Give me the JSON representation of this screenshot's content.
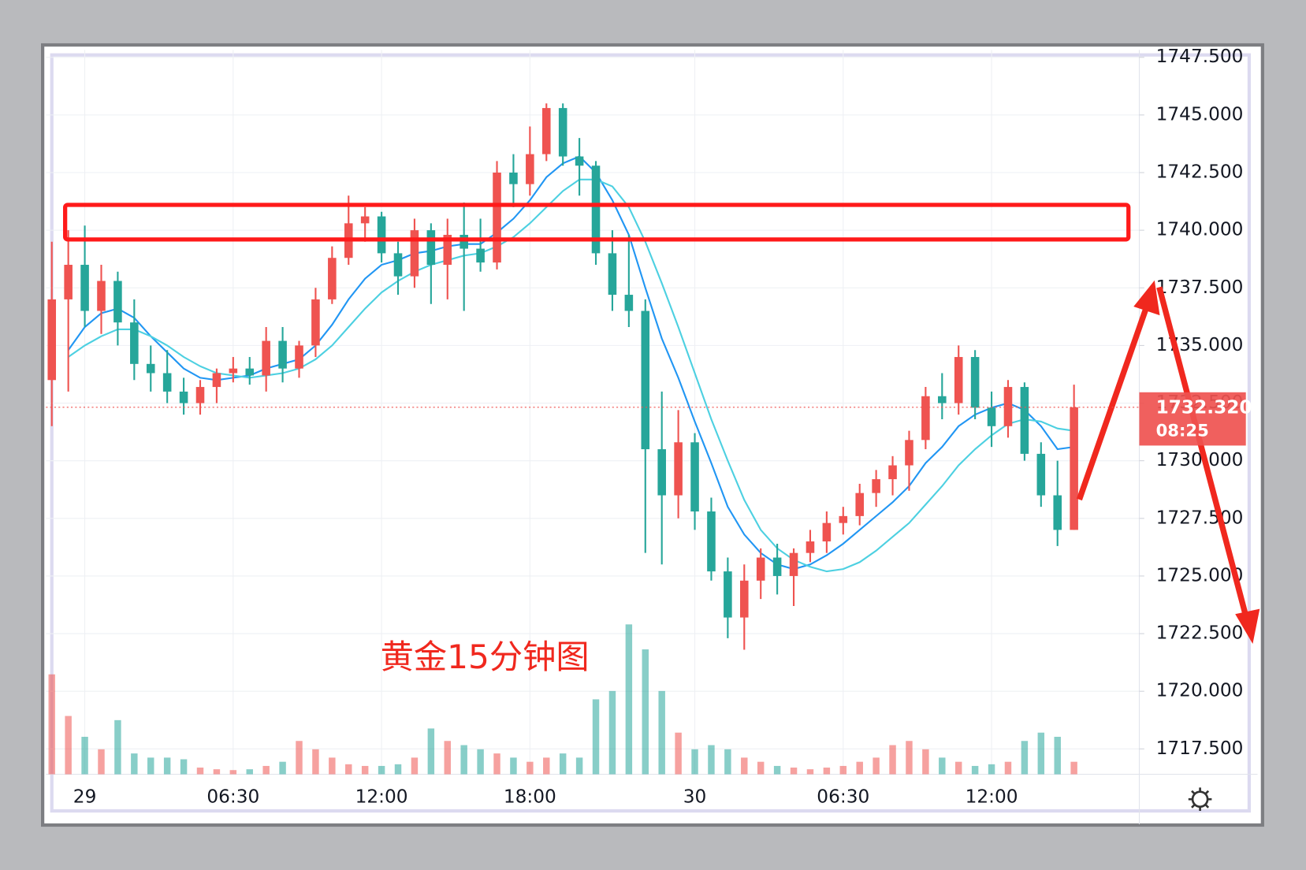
{
  "chart_data": {
    "type": "candlestick",
    "annotation": "黄金15分钟图",
    "last_price_label": "1732.320",
    "countdown": "08:25",
    "up_color": "#ef5350",
    "down_color": "#26a69a",
    "zone": [
      1739.6,
      1741.1
    ],
    "zone_color": "#ff1a1a",
    "categories": [
      null,
      null,
      "29",
      null,
      null,
      null,
      null,
      null,
      null,
      null,
      null,
      "06:30",
      null,
      null,
      null,
      null,
      null,
      null,
      null,
      null,
      "12:00",
      null,
      null,
      null,
      null,
      null,
      null,
      null,
      null,
      "18:00",
      null,
      null,
      null,
      null,
      null,
      null,
      null,
      null,
      null,
      "30",
      null,
      null,
      null,
      null,
      null,
      null,
      null,
      null,
      "06:30",
      null,
      null,
      null,
      null,
      null,
      null,
      null,
      null,
      "12:00",
      null,
      null,
      null,
      null,
      null
    ],
    "open": [
      1733.5,
      1737,
      1738.5,
      1736.5,
      1737.8,
      1736,
      1734.2,
      1733.8,
      1733,
      1732.5,
      1733.2,
      1733.8,
      1734,
      1733.7,
      1735.2,
      1734,
      1735,
      1737,
      1738.8,
      1740.3,
      1740.6,
      1739,
      1738,
      1740,
      1738.5,
      1739.8,
      1739.2,
      1738.6,
      1742.5,
      1742,
      1743.3,
      1745.3,
      1743.2,
      1742.8,
      1739,
      1737.2,
      1736.5,
      1730.5,
      1728.5,
      1730.8,
      1727.8,
      1725.2,
      1723.2,
      1724.8,
      1725.8,
      1725,
      1726,
      1726.5,
      1727.3,
      1727.6,
      1728.6,
      1729.2,
      1729.8,
      1730.9,
      1732.8,
      1732.5,
      1734.5,
      1732.3,
      1731.5,
      1733.2,
      1730.3,
      1728.5,
      1727
    ],
    "high": [
      1739.5,
      1740,
      1740.2,
      1738.5,
      1738.2,
      1737,
      1735,
      1734.8,
      1733.6,
      1733.5,
      1734,
      1734.5,
      1734.5,
      1735.8,
      1735.8,
      1735.2,
      1737.5,
      1739.3,
      1741.5,
      1741,
      1740.8,
      1739.5,
      1740.5,
      1740.3,
      1740.5,
      1741.2,
      1740.5,
      1743,
      1743.3,
      1744.5,
      1745.5,
      1745.5,
      1744,
      1743,
      1740,
      1739.8,
      1737,
      1733,
      1732.2,
      1731.2,
      1728.4,
      1725.8,
      1725.5,
      1726.2,
      1726.4,
      1726.2,
      1727,
      1727.8,
      1728,
      1729,
      1729.6,
      1730.2,
      1731.3,
      1733.2,
      1733.8,
      1735,
      1734.8,
      1733,
      1733.5,
      1733.4,
      1730.8,
      1730,
      1733.3
    ],
    "low": [
      1731.5,
      1733,
      1735.8,
      1735.5,
      1735,
      1733.5,
      1733,
      1732.5,
      1732,
      1732,
      1732.5,
      1733.4,
      1733.3,
      1733,
      1733.4,
      1733.6,
      1734.5,
      1736.8,
      1738.5,
      1739.5,
      1738.6,
      1737.2,
      1737.5,
      1736.8,
      1737,
      1736.5,
      1738.2,
      1738.3,
      1741,
      1741.5,
      1743,
      1742.8,
      1741.5,
      1738.5,
      1736.5,
      1735.8,
      1726,
      1725.5,
      1727.5,
      1727,
      1724.8,
      1722.3,
      1721.8,
      1724,
      1724.2,
      1723.7,
      1725.6,
      1726,
      1726.8,
      1727.2,
      1728,
      1728.5,
      1728.7,
      1730.5,
      1731.8,
      1732,
      1731.8,
      1730.6,
      1731,
      1730,
      1728,
      1726.3,
      1727
    ],
    "close": [
      1737,
      1738.5,
      1736.5,
      1737.8,
      1736,
      1734.2,
      1733.8,
      1733,
      1732.5,
      1733.2,
      1733.8,
      1734,
      1733.7,
      1735.2,
      1734,
      1735,
      1737,
      1738.8,
      1740.3,
      1740.6,
      1739,
      1738,
      1740,
      1738.5,
      1739.8,
      1739.2,
      1738.6,
      1742.5,
      1742,
      1743.3,
      1745.3,
      1743.2,
      1742.8,
      1739,
      1737.2,
      1736.5,
      1730.5,
      1728.5,
      1730.8,
      1727.8,
      1725.2,
      1723.2,
      1724.8,
      1725.8,
      1725,
      1726,
      1726.5,
      1727.3,
      1727.6,
      1728.6,
      1729.2,
      1729.8,
      1730.9,
      1732.8,
      1732.5,
      1734.5,
      1732.3,
      1731.5,
      1733.2,
      1730.3,
      1728.5,
      1727,
      1732.32
    ],
    "volume": [
      120,
      70,
      45,
      30,
      65,
      25,
      20,
      20,
      18,
      8,
      6,
      5,
      6,
      10,
      15,
      40,
      30,
      20,
      12,
      10,
      10,
      12,
      20,
      55,
      40,
      35,
      30,
      25,
      20,
      15,
      20,
      25,
      20,
      90,
      100,
      180,
      150,
      100,
      50,
      30,
      35,
      30,
      20,
      15,
      10,
      8,
      6,
      8,
      10,
      15,
      20,
      35,
      40,
      30,
      20,
      15,
      10,
      12,
      15,
      40,
      50,
      45,
      15
    ],
    "moving_averages": [
      {
        "color": "#2196f3",
        "values": [
          null,
          1734.8,
          1735.8,
          1736.4,
          1736.6,
          1736.2,
          1735.4,
          1734.7,
          1734,
          1733.6,
          1733.5,
          1733.6,
          1733.7,
          1734,
          1734.2,
          1734.4,
          1735,
          1735.9,
          1737,
          1737.9,
          1738.5,
          1738.7,
          1739,
          1739.1,
          1739.3,
          1739.4,
          1739.4,
          1739.9,
          1740.5,
          1741.3,
          1742.3,
          1742.9,
          1743.2,
          1742.5,
          1741.3,
          1739.8,
          1737.5,
          1735.3,
          1733.6,
          1731.7,
          1729.9,
          1728,
          1726.8,
          1726,
          1725.5,
          1725.3,
          1725.5,
          1725.9,
          1726.4,
          1727,
          1727.6,
          1728.2,
          1728.9,
          1729.9,
          1730.6,
          1731.5,
          1732,
          1732.3,
          1732.5,
          1732.2,
          1731.5,
          1730.5,
          1730.6
        ]
      },
      {
        "color": "#4dd0e1",
        "values": [
          null,
          1734.5,
          1735,
          1735.4,
          1735.7,
          1735.7,
          1735.4,
          1735,
          1734.5,
          1734.1,
          1733.8,
          1733.7,
          1733.6,
          1733.7,
          1733.8,
          1734,
          1734.4,
          1735,
          1735.8,
          1736.6,
          1737.3,
          1737.8,
          1738.2,
          1738.5,
          1738.7,
          1738.9,
          1739,
          1739.3,
          1739.7,
          1740.3,
          1741,
          1741.7,
          1742.2,
          1742.2,
          1741.9,
          1741,
          1739.5,
          1737.7,
          1735.8,
          1733.8,
          1731.8,
          1730,
          1728.3,
          1727,
          1726.2,
          1725.7,
          1725.4,
          1725.2,
          1725.3,
          1725.6,
          1726.1,
          1726.7,
          1727.3,
          1728.1,
          1728.9,
          1729.8,
          1730.5,
          1731.1,
          1731.6,
          1731.8,
          1731.7,
          1731.4,
          1731.3
        ]
      }
    ],
    "ylim": [
      1716.4,
      1747.82
    ],
    "yticks": [
      {
        "value": 1717.5,
        "label": "1717.500"
      },
      {
        "value": 1720,
        "label": "1720.000"
      },
      {
        "value": 1722.5,
        "label": "1722.500"
      },
      {
        "value": 1725,
        "label": "1725.000"
      },
      {
        "value": 1727.5,
        "label": "1727.500"
      },
      {
        "value": 1730,
        "label": "1730.000"
      },
      {
        "value": 1732.5,
        "label": "1732.500"
      },
      {
        "value": 1735,
        "label": "1735.000"
      },
      {
        "value": 1737.5,
        "label": "1737.500"
      },
      {
        "value": 1740,
        "label": "1740.000"
      },
      {
        "value": 1742.5,
        "label": "1742.500"
      },
      {
        "value": 1745,
        "label": "1745.000"
      },
      {
        "value": 1747.5,
        "label": "1747.500"
      }
    ],
    "grid": true
  }
}
